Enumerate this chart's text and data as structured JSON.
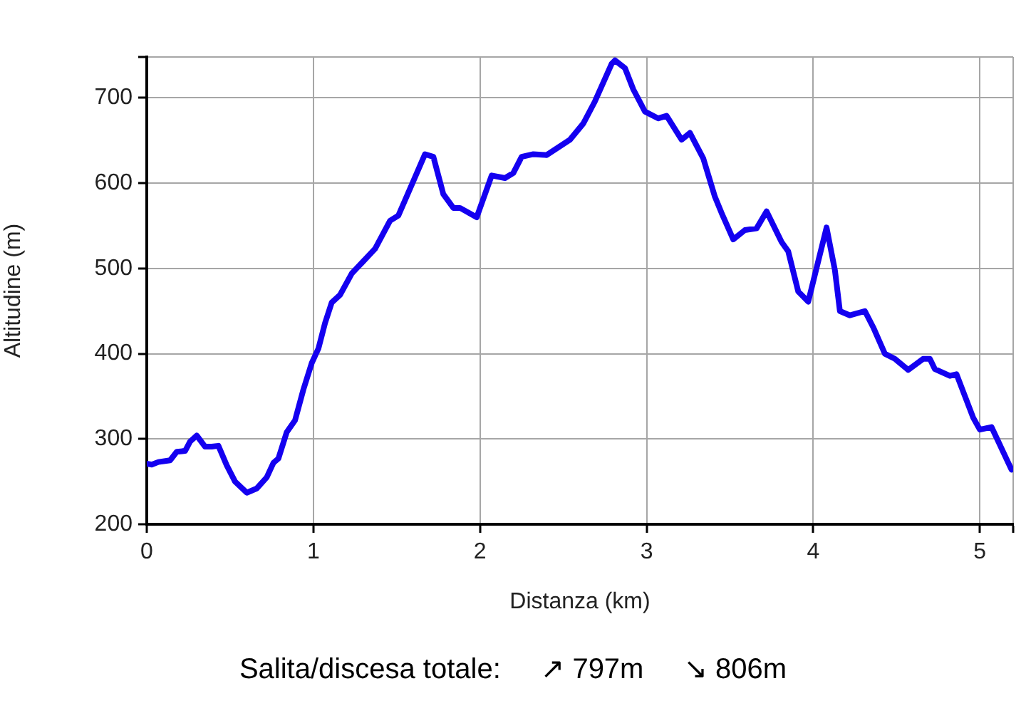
{
  "chart_data": {
    "type": "line",
    "xlabel": "Distanza (km)",
    "ylabel": "Altitudine (m)",
    "x": [
      0.0,
      0.03,
      0.07,
      0.14,
      0.18,
      0.23,
      0.26,
      0.3,
      0.35,
      0.39,
      0.43,
      0.48,
      0.53,
      0.6,
      0.66,
      0.72,
      0.76,
      0.79,
      0.84,
      0.89,
      0.94,
      0.99,
      1.03,
      1.07,
      1.11,
      1.16,
      1.23,
      1.37,
      1.46,
      1.51,
      1.67,
      1.72,
      1.78,
      1.84,
      1.88,
      1.98,
      2.07,
      2.15,
      2.2,
      2.25,
      2.32,
      2.4,
      2.54,
      2.62,
      2.69,
      2.79,
      2.81,
      2.87,
      2.92,
      2.99,
      3.07,
      3.12,
      3.21,
      3.26,
      3.34,
      3.41,
      3.45,
      3.52,
      3.59,
      3.66,
      3.72,
      3.81,
      3.85,
      3.91,
      3.97,
      4.08,
      4.13,
      4.16,
      4.22,
      4.31,
      4.36,
      4.43,
      4.49,
      4.57,
      4.66,
      4.7,
      4.73,
      4.82,
      4.86,
      4.96,
      5.0,
      5.07,
      5.19
    ],
    "values": [
      271,
      270,
      273,
      275,
      285,
      286,
      297,
      304,
      291,
      291,
      292,
      269,
      250,
      237,
      242,
      255,
      272,
      277,
      308,
      322,
      358,
      389,
      406,
      436,
      460,
      469,
      494,
      523,
      556,
      562,
      634,
      631,
      587,
      571,
      571,
      560,
      609,
      606,
      612,
      631,
      634,
      633,
      651,
      670,
      696,
      740,
      744,
      735,
      710,
      684,
      676,
      679,
      651,
      659,
      629,
      584,
      565,
      534,
      545,
      547,
      567,
      531,
      520,
      473,
      461,
      548,
      498,
      450,
      445,
      450,
      431,
      400,
      394,
      381,
      394,
      394,
      382,
      374,
      376,
      325,
      311,
      314,
      264
    ],
    "color": "#1400f0",
    "xlim": [
      0,
      5.2
    ],
    "ylim": [
      200,
      748
    ],
    "xticks": [
      0,
      1,
      2,
      3,
      4,
      5,
      {
        "value": 5.2,
        "label": null
      }
    ],
    "yticks": [
      200,
      300,
      400,
      500,
      600,
      700,
      {
        "value": 748,
        "label": null
      }
    ],
    "grid": true,
    "annotations": [
      "Salita/discesa totale:",
      "↗ 797m",
      "↘ 806m"
    ]
  }
}
